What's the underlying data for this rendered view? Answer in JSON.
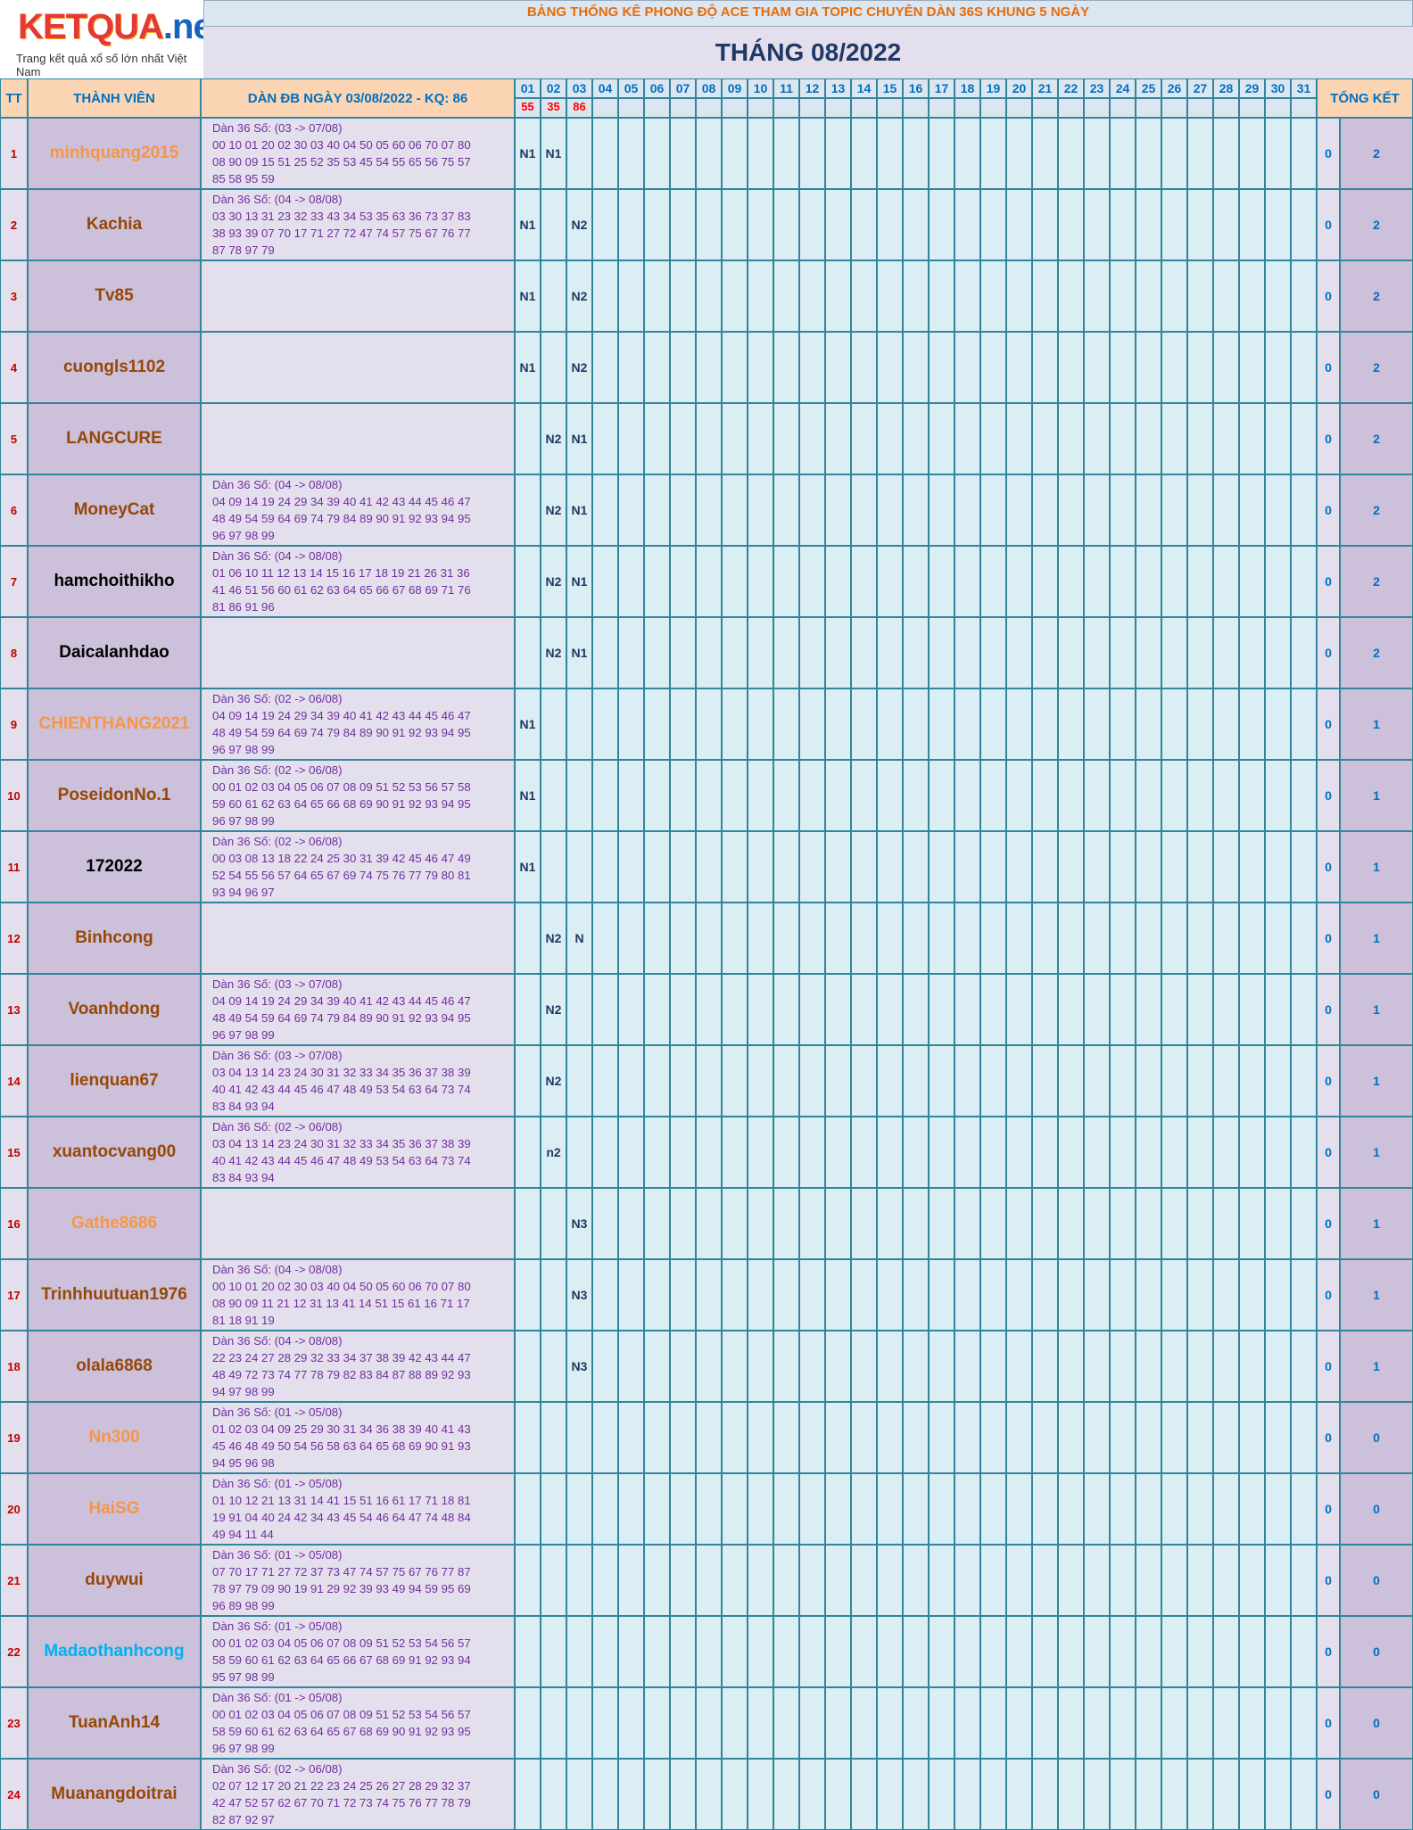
{
  "logo": {
    "brand": "KETQUA",
    "tld": ".net",
    "tagline": "Trang kết quả xổ số lớn nhất Việt Nam"
  },
  "banner": "BẢNG THỐNG KÊ PHONG ĐỘ ACE THAM GIA TOPIC CHUYÊN DÀN 36S KHUNG 5 NGÀY",
  "month_title": "THÁNG 08/2022",
  "headers": {
    "tt": "TT",
    "member": "THÀNH VIÊN",
    "dan": "DÀN ĐB NGÀY 03/08/2022 - KQ: 86",
    "summary": "TỔNG KẾT"
  },
  "days": [
    "01",
    "02",
    "03",
    "04",
    "05",
    "06",
    "07",
    "08",
    "09",
    "10",
    "11",
    "12",
    "13",
    "14",
    "15",
    "16",
    "17",
    "18",
    "19",
    "20",
    "21",
    "22",
    "23",
    "24",
    "25",
    "26",
    "27",
    "28",
    "29",
    "30",
    "31"
  ],
  "results": [
    "55",
    "35",
    "86",
    "",
    "",
    "",
    "",
    "",
    "",
    "",
    "",
    "",
    "",
    "",
    "",
    "",
    "",
    "",
    "",
    "",
    "",
    "",
    "",
    "",
    "",
    "",
    "",
    "",
    "",
    "",
    ""
  ],
  "colors": {
    "orange_name": "#f79646",
    "brown_name": "#974706",
    "black_name": "#000000",
    "blue_name": "#00b0f0"
  },
  "rows": [
    {
      "tt": "1",
      "name": "minhquang2015",
      "name_color": "#f79646",
      "dan": [
        "Dàn 36 Số: (03 -> 07/08)",
        "00 10 01 20 02 30 03 40 04 50 05 60 06 70 07 80",
        "08 90 09 15 51 25 52 35 53 45 54 55 65 56 75 57",
        "85 58 95 59"
      ],
      "marks": {
        "01": "N1",
        "02": "N1"
      },
      "s1": "0",
      "s2": "2"
    },
    {
      "tt": "2",
      "name": "Kachia",
      "name_color": "#974706",
      "dan": [
        "Dàn 36 Số: (04 -> 08/08)",
        "03 30 13 31 23 32 33 43 34 53 35 63 36 73 37 83",
        "38 93 39 07 70 17 71 27 72 47 74 57 75 67 76 77",
        "87 78 97 79"
      ],
      "marks": {
        "01": "N1",
        "03": "N2"
      },
      "s1": "0",
      "s2": "2"
    },
    {
      "tt": "3",
      "name": "Tv85",
      "name_color": "#974706",
      "dan": [],
      "marks": {
        "01": "N1",
        "03": "N2"
      },
      "s1": "0",
      "s2": "2"
    },
    {
      "tt": "4",
      "name": "cuongls1102",
      "name_color": "#974706",
      "dan": [],
      "marks": {
        "01": "N1",
        "03": "N2"
      },
      "s1": "0",
      "s2": "2"
    },
    {
      "tt": "5",
      "name": "LANGCURE",
      "name_color": "#974706",
      "dan": [],
      "marks": {
        "02": "N2",
        "03": "N1"
      },
      "s1": "0",
      "s2": "2"
    },
    {
      "tt": "6",
      "name": "MoneyCat",
      "name_color": "#974706",
      "dan": [
        "Dàn 36 Số: (04 -> 08/08)",
        "04 09 14 19 24 29 34 39 40 41 42 43 44 45 46 47",
        "48 49 54 59 64 69 74 79 84 89 90 91 92 93 94 95",
        "96 97 98 99"
      ],
      "marks": {
        "02": "N2",
        "03": "N1"
      },
      "s1": "0",
      "s2": "2"
    },
    {
      "tt": "7",
      "name": "hamchoithikho",
      "name_color": "#000000",
      "dan": [
        "Dàn 36 Số: (04 -> 08/08)",
        "01 06 10 11 12 13 14 15 16 17 18 19 21 26 31 36",
        "41 46 51 56 60 61 62 63 64 65 66 67 68 69 71 76",
        "81 86 91 96"
      ],
      "marks": {
        "02": "N2",
        "03": "N1"
      },
      "s1": "0",
      "s2": "2"
    },
    {
      "tt": "8",
      "name": "Daicalanhdao",
      "name_color": "#000000",
      "dan": [],
      "marks": {
        "02": "N2",
        "03": "N1"
      },
      "s1": "0",
      "s2": "2"
    },
    {
      "tt": "9",
      "name": "CHIENTHANG2021",
      "name_color": "#f79646",
      "dan": [
        "Dàn 36 Số: (02 -> 06/08)",
        "04 09 14 19 24 29 34 39 40 41 42 43 44 45 46 47",
        "48 49 54 59 64 69 74 79 84 89 90 91 92 93 94 95",
        "96 97 98 99"
      ],
      "marks": {
        "01": "N1"
      },
      "s1": "0",
      "s2": "1"
    },
    {
      "tt": "10",
      "name": "PoseidonNo.1",
      "name_color": "#974706",
      "dan": [
        "Dàn 36 Số: (02 -> 06/08)",
        "00 01 02 03 04 05 06 07 08 09 51 52 53 56 57 58",
        "59 60 61 62 63 64 65 66 68 69 90 91 92 93 94 95",
        "96 97 98 99"
      ],
      "marks": {
        "01": "N1"
      },
      "s1": "0",
      "s2": "1"
    },
    {
      "tt": "11",
      "name": "172022",
      "name_color": "#000000",
      "dan": [
        "Dàn 36 Số: (02 -> 06/08)",
        "00 03 08 13 18 22 24 25 30 31 39 42 45 46 47 49",
        "52 54 55 56 57 64 65 67 69 74 75 76 77 79 80 81",
        "93 94 96 97"
      ],
      "marks": {
        "01": "N1"
      },
      "s1": "0",
      "s2": "1"
    },
    {
      "tt": "12",
      "name": "Binhcong",
      "name_color": "#974706",
      "dan": [],
      "marks": {
        "02": "N2",
        "03": "N"
      },
      "s1": "0",
      "s2": "1"
    },
    {
      "tt": "13",
      "name": "Voanhdong",
      "name_color": "#974706",
      "dan": [
        "Dàn 36 Số: (03 -> 07/08)",
        "04 09 14 19 24 29 34 39 40 41 42 43 44 45 46 47",
        "48 49 54 59 64 69 74 79 84 89 90 91 92 93 94 95",
        "96 97 98 99"
      ],
      "marks": {
        "02": "N2"
      },
      "s1": "0",
      "s2": "1"
    },
    {
      "tt": "14",
      "name": "lienquan67",
      "name_color": "#974706",
      "dan": [
        "Dàn 36 Số: (03 -> 07/08)",
        "03 04 13 14 23 24 30 31 32 33 34 35 36 37 38 39",
        "40 41 42 43 44 45 46 47 48 49 53 54 63 64 73 74",
        "83 84 93 94"
      ],
      "marks": {
        "02": "N2"
      },
      "s1": "0",
      "s2": "1"
    },
    {
      "tt": "15",
      "name": "xuantocvang00",
      "name_color": "#974706",
      "dan": [
        "Dàn 36 Số: (02 -> 06/08)",
        "03 04 13 14 23 24 30 31 32 33 34 35 36 37 38 39",
        "40 41 42 43 44 45 46 47 48 49 53 54 63 64 73 74",
        "83 84 93 94"
      ],
      "marks": {
        "02": "n2"
      },
      "s1": "0",
      "s2": "1"
    },
    {
      "tt": "16",
      "name": "Gathe8686",
      "name_color": "#f79646",
      "dan": [],
      "marks": {
        "03": "N3"
      },
      "s1": "0",
      "s2": "1"
    },
    {
      "tt": "17",
      "name": "Trinhhuutuan1976",
      "name_color": "#974706",
      "dan": [
        "Dàn 36 Số: (04 -> 08/08)",
        "00 10 01 20 02 30 03 40 04 50 05 60 06 70 07 80",
        "08 90 09 11 21 12 31 13 41 14 51 15 61 16 71 17",
        "81 18 91 19"
      ],
      "marks": {
        "03": "N3"
      },
      "s1": "0",
      "s2": "1"
    },
    {
      "tt": "18",
      "name": "olala6868",
      "name_color": "#974706",
      "dan": [
        "Dàn 36 Số: (04 -> 08/08)",
        "22 23 24 27 28 29 32 33 34 37 38 39 42 43 44 47",
        "48 49 72 73 74 77 78 79 82 83 84 87 88 89 92 93",
        "94 97 98 99"
      ],
      "marks": {
        "03": "N3"
      },
      "s1": "0",
      "s2": "1"
    },
    {
      "tt": "19",
      "name": "Nn300",
      "name_color": "#f79646",
      "dan": [
        "Dàn 36 Số: (01 -> 05/08)",
        "01 02 03 04 09 25 29 30 31 34 36 38 39 40 41 43",
        "45 46 48 49 50 54 56 58 63 64 65 68 69 90 91 93",
        "94 95 96 98"
      ],
      "marks": {},
      "s1": "0",
      "s2": "0"
    },
    {
      "tt": "20",
      "name": "HaiSG",
      "name_color": "#f79646",
      "dan": [
        "Dàn 36 Số: (01 -> 05/08)",
        "01 10 12 21 13 31 14 41 15 51 16 61 17 71 18 81",
        "19 91 04 40 24 42 34 43 45 54 46 64 47 74 48 84",
        "49 94 11 44"
      ],
      "marks": {},
      "s1": "0",
      "s2": "0"
    },
    {
      "tt": "21",
      "name": "duywui",
      "name_color": "#974706",
      "dan": [
        "Dàn 36 Số: (01 -> 05/08)",
        "07 70 17 71 27 72 37 73 47 74 57 75 67 76 77 87",
        "78 97 79 09 90 19 91 29 92 39 93 49 94 59 95 69",
        "96 89 98 99"
      ],
      "marks": {},
      "s1": "0",
      "s2": "0"
    },
    {
      "tt": "22",
      "name": "Madaothanhcong",
      "name_color": "#00b0f0",
      "dan": [
        "Dàn 36 Số: (01 -> 05/08)",
        "00 01 02 03 04 05 06 07 08 09 51 52 53 54 56 57",
        "58 59 60 61 62 63 64 65 66 67 68 69 91 92 93 94",
        "95 97 98 99"
      ],
      "marks": {},
      "s1": "0",
      "s2": "0"
    },
    {
      "tt": "23",
      "name": "TuanAnh14",
      "name_color": "#974706",
      "dan": [
        "Dàn 36 Số: (01 -> 05/08)",
        "00 01 02 03 04 05 06 07 08 09 51 52 53 54 56 57",
        "58 59 60 61 62 63 64 65 67 68 69 90 91 92 93 95",
        "96 97 98 99"
      ],
      "marks": {},
      "s1": "0",
      "s2": "0"
    },
    {
      "tt": "24",
      "name": "Muanangdoitrai",
      "name_color": "#974706",
      "dan": [
        "Dàn 36 Số: (02 -> 06/08)",
        "02 07 12 17 20 21 22 23 24 25 26 27 28 29 32 37",
        "42 47 52 57 62 67 70 71 72 73 74 75 76 77 78 79",
        "82 87 92 97"
      ],
      "marks": {},
      "s1": "0",
      "s2": "0"
    }
  ]
}
